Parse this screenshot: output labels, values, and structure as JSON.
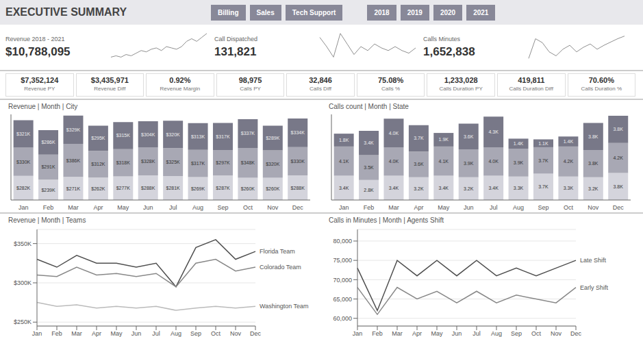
{
  "title": "EXECUTIVE SUMMARY",
  "annotations": {
    "tabs": [
      "Billing",
      "Sales",
      "Tech Support"
    ],
    "year_tabs": [
      "2018",
      "2019",
      "2020",
      "2021"
    ],
    "sub_kpis": [
      {
        "value": "$7,352,124",
        "label": "Revenue PY"
      },
      {
        "value": "$3,435,971",
        "label": "Revenue Diff"
      },
      {
        "value": "0.92%",
        "label": "Revenue Margin"
      },
      {
        "value": "98,975",
        "label": "Calls PY"
      },
      {
        "value": "32,846",
        "label": "Calls Diff"
      },
      {
        "value": "75.08%",
        "label": "Calls %"
      },
      {
        "value": "1,233,028",
        "label": "Calls Duration PY"
      },
      {
        "value": "419,811",
        "label": "Calls Duration Diff"
      },
      {
        "value": "70.60%",
        "label": "Calls Duration %"
      }
    ]
  },
  "chart_data": [
    {
      "type": "line",
      "title": "Revenue 2018 - 2021",
      "annotations": [
        "$10,788,095"
      ],
      "values": [
        50,
        51,
        50,
        52,
        51,
        53,
        55,
        54,
        56,
        57,
        55,
        58,
        57,
        56,
        58,
        62,
        64,
        62,
        65,
        68
      ],
      "color": "#909090",
      "ylim": [
        45,
        70
      ],
      "tick_labels": false
    },
    {
      "type": "line",
      "title": "Call Dispatched",
      "annotations": [
        "131,821"
      ],
      "values": [
        65,
        58,
        50,
        68,
        60,
        52,
        58,
        55,
        60,
        57,
        55,
        58,
        55,
        53,
        57
      ],
      "color": "#909090",
      "ylim": [
        45,
        70
      ],
      "tick_labels": false
    },
    {
      "type": "line",
      "title": "Calls Minutes",
      "annotations": [
        "1,652,838"
      ],
      "values": [
        48,
        78,
        72,
        58,
        52,
        62,
        68,
        58,
        65,
        70,
        62,
        68,
        73,
        78,
        82
      ],
      "color": "#909090",
      "ylim": [
        40,
        90
      ],
      "tick_labels": false
    },
    {
      "type": "bar",
      "title": "Revenue | Month | City",
      "stacked": true,
      "data_labels": true,
      "tick_labels": "x",
      "grid": false,
      "ylim": [
        0,
        1000
      ],
      "categories": [
        "Jan",
        "Feb",
        "Mar",
        "Apr",
        "May",
        "Jun",
        "Jul",
        "Aug",
        "Sep",
        "Oct",
        "Nov",
        "Dec"
      ],
      "series": [
        {
          "color": "#d4d4dc",
          "values": [
            282,
            239,
            271,
            262,
            277,
            288,
            281,
            269,
            287,
            260,
            260,
            288
          ],
          "value_labels": [
            "$282K",
            "$239K",
            "$271K",
            "$262K",
            "$277K",
            "$288K",
            "$281K",
            "$269K",
            "$287K",
            "$260K",
            "$260K",
            "$288K"
          ]
        },
        {
          "color": "#a8a8b4",
          "values": [
            330,
            291,
            386,
            312,
            318,
            328,
            325,
            317,
            297,
            348,
            320,
            330
          ],
          "value_labels": [
            "$330K",
            "$291K",
            "$386K",
            "$312K",
            "$318K",
            "$328K",
            "$325K",
            "$317K",
            "$297K",
            "$348K",
            "$320K",
            "$330K"
          ]
        },
        {
          "color": "#787888",
          "values": [
            321,
            286,
            329,
            295,
            315,
            304,
            320,
            313,
            317,
            337,
            289,
            334
          ],
          "value_labels": [
            "$321K",
            "$286K",
            "$329K",
            "$295K",
            "$315K",
            "$304K",
            "$320K",
            "$313K",
            "$317K",
            "$337K",
            "$289K",
            "$334K"
          ]
        }
      ]
    },
    {
      "type": "bar",
      "title": "Calls count | Month | State",
      "stacked": true,
      "data_labels": true,
      "tick_labels": "x",
      "grid": false,
      "ylim": [
        0,
        12
      ],
      "categories": [
        "Jan",
        "Feb",
        "Mar",
        "Apr",
        "May",
        "Jun",
        "Jul",
        "Aug",
        "Sep",
        "Oct",
        "Nov",
        "Dec"
      ],
      "series": [
        {
          "color": "#d4d4dc",
          "values": [
            3.4,
            2.8,
            3.4,
            3.2,
            3.4,
            3.2,
            3.4,
            3.3,
            3.7,
            3.3,
            3.2,
            3.8
          ],
          "value_labels": [
            "3.4K",
            "2.8K",
            "3.4K",
            "3.2K",
            "3.4K",
            "3.2K",
            "3.4K",
            "3.3K",
            "3.7K",
            "3.3K",
            "3.2K",
            "3.8K"
          ]
        },
        {
          "color": "#a8a8b4",
          "values": [
            4.1,
            3.5,
            4.0,
            3.6,
            4.1,
            3.9,
            4.0,
            3.9,
            3.7,
            4.2,
            3.8,
            4.2
          ],
          "value_labels": [
            "4.1K",
            "3.5K",
            "4.0K",
            "3.6K",
            "4.1K",
            "3.9K",
            "4.0K",
            "3.9K",
            "3.7K",
            "4.2K",
            "3.8K",
            "4.2K"
          ]
        },
        {
          "color": "#787888",
          "values": [
            1.8,
            3.4,
            4.0,
            3.7,
            1.9,
            3.6,
            4.3,
            1.4,
            1.1,
            1.4,
            3.8,
            3.8
          ],
          "value_labels": [
            "1.8K",
            "3.4K",
            "4.0K",
            "3.7K",
            "1.9K",
            "3.6K",
            "4.3K",
            "1.4K",
            "1.1K",
            "1.4K",
            "3.8K",
            "3.8K"
          ]
        }
      ]
    },
    {
      "type": "line",
      "title": "Revenue | Month | Teams",
      "grid": true,
      "ylim": [
        245,
        368
      ],
      "yticks": [
        {
          "value": 250,
          "label": "$250K"
        },
        {
          "value": 300,
          "label": "$300K"
        },
        {
          "value": 350,
          "label": "$350K"
        }
      ],
      "categories": [
        "Jan",
        "Feb",
        "Mar",
        "Apr",
        "May",
        "Jun",
        "Jul",
        "Aug",
        "Sep",
        "Oct",
        "Nov",
        "Dec"
      ],
      "series": [
        {
          "name": "Florida Team",
          "color": "#505050",
          "values": [
            330,
            320,
            335,
            325,
            325,
            320,
            325,
            295,
            345,
            355,
            330,
            340
          ]
        },
        {
          "name": "Colorado Team",
          "color": "#888888",
          "values": [
            310,
            308,
            320,
            310,
            312,
            308,
            312,
            295,
            325,
            330,
            315,
            320
          ]
        },
        {
          "name": "Washington Team",
          "color": "#bbbbbb",
          "values": [
            275,
            270,
            272,
            268,
            270,
            268,
            270,
            265,
            268,
            270,
            268,
            270
          ]
        }
      ]
    },
    {
      "type": "line",
      "title": "Calls in Minutes | Month | Agents Shift",
      "grid": true,
      "ylim": [
        58000,
        83000
      ],
      "yticks": [
        {
          "value": 60000,
          "label": "60,000"
        },
        {
          "value": 65000,
          "label": "65,000"
        },
        {
          "value": 70000,
          "label": "70,000"
        },
        {
          "value": 75000,
          "label": "75,000"
        },
        {
          "value": 80000,
          "label": "80,000"
        }
      ],
      "categories": [
        "Jan",
        "Feb",
        "Mar",
        "Apr",
        "May",
        "Jun",
        "Jul",
        "Aug",
        "Sep",
        "Oct",
        "Nov",
        "Dec"
      ],
      "series": [
        {
          "name": "Late Shift",
          "color": "#505050",
          "values": [
            73000,
            62000,
            75000,
            71000,
            75000,
            71000,
            75000,
            71000,
            73000,
            71000,
            73000,
            75000
          ]
        },
        {
          "name": "Early Shift",
          "color": "#888888",
          "values": [
            68000,
            61000,
            68000,
            65000,
            67000,
            64000,
            67000,
            64000,
            66000,
            65000,
            64000,
            68000
          ]
        }
      ]
    }
  ]
}
